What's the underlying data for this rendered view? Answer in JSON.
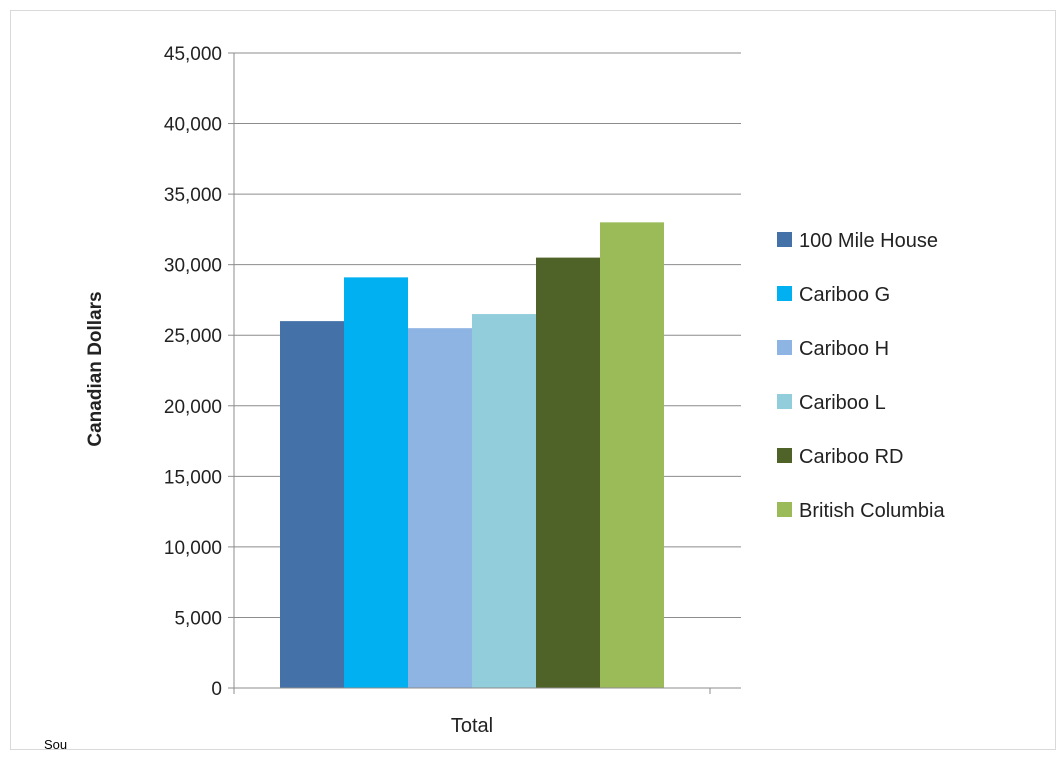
{
  "chart_data": {
    "type": "bar",
    "categories": [
      "Total"
    ],
    "series": [
      {
        "name": "100 Mile House",
        "values": [
          26000
        ],
        "color": "#4472A8"
      },
      {
        "name": "Cariboo G",
        "values": [
          29100
        ],
        "color": "#00B0F0"
      },
      {
        "name": "Cariboo H",
        "values": [
          25500
        ],
        "color": "#8EB4E3"
      },
      {
        "name": "Cariboo L",
        "values": [
          26500
        ],
        "color": "#92CDDC"
      },
      {
        "name": "Cariboo RD",
        "values": [
          30500
        ],
        "color": "#4F6228"
      },
      {
        "name": "British Columbia",
        "values": [
          33000
        ],
        "color": "#9BBB59"
      }
    ],
    "ylabel": "Canadian Dollars",
    "xlabel": "",
    "ylim": [
      0,
      45000
    ],
    "yticks": [
      0,
      5000,
      10000,
      15000,
      20000,
      25000,
      30000,
      35000,
      40000,
      45000
    ],
    "ytick_labels": [
      "0",
      "5,000",
      "10,000",
      "15,000",
      "20,000",
      "25,000",
      "30,000",
      "35,000",
      "40,000",
      "45,000"
    ],
    "grid": true,
    "legend": "right"
  },
  "source_note": "Sou"
}
